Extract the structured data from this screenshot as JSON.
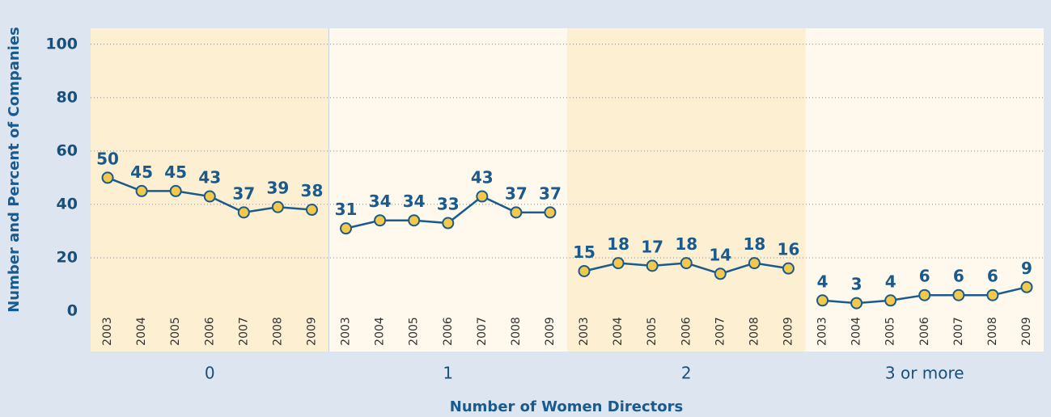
{
  "chart_data": {
    "type": "line",
    "y_label": "Number and Percent of Companies",
    "x_label": "Number of Women Directors",
    "ylim": [
      0,
      106
    ],
    "yticks": [
      0,
      20,
      40,
      60,
      80,
      100
    ],
    "grid": true,
    "line_color": "#1a5a8c",
    "marker_color": "#f2c94c",
    "panel_colors": [
      "#fcefd2",
      "#fef9ec"
    ],
    "groups": [
      {
        "label": "0",
        "categories": [
          "2003",
          "2004",
          "2005",
          "2006",
          "2007",
          "2008",
          "2009"
        ],
        "values": [
          50,
          45,
          45,
          43,
          37,
          39,
          38
        ]
      },
      {
        "label": "1",
        "categories": [
          "2003",
          "2004",
          "2005",
          "2006",
          "2007",
          "2008",
          "2009"
        ],
        "values": [
          31,
          34,
          34,
          33,
          43,
          37,
          37
        ]
      },
      {
        "label": "2",
        "categories": [
          "2003",
          "2004",
          "2005",
          "2006",
          "2007",
          "2008",
          "2009"
        ],
        "values": [
          15,
          18,
          17,
          18,
          14,
          18,
          16
        ]
      },
      {
        "label": "3 or more",
        "categories": [
          "2003",
          "2004",
          "2005",
          "2006",
          "2007",
          "2008",
          "2009"
        ],
        "values": [
          4,
          3,
          4,
          6,
          6,
          6,
          9
        ]
      }
    ]
  }
}
